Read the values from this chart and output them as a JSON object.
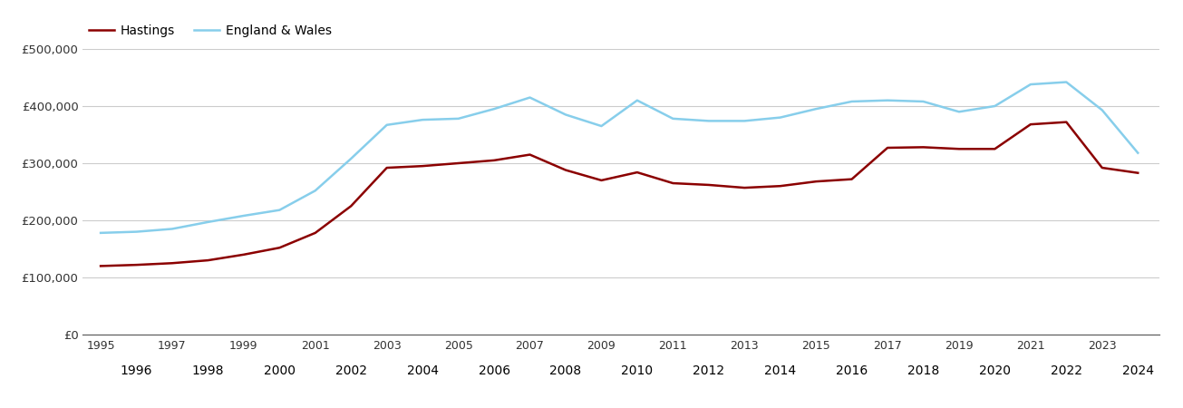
{
  "hastings_years": [
    1995,
    1996,
    1997,
    1998,
    1999,
    2000,
    2001,
    2002,
    2003,
    2004,
    2005,
    2006,
    2007,
    2008,
    2009,
    2010,
    2011,
    2012,
    2013,
    2014,
    2015,
    2016,
    2017,
    2018,
    2019,
    2020,
    2021,
    2022,
    2023,
    2024
  ],
  "hastings_values": [
    120000,
    122000,
    125000,
    130000,
    140000,
    152000,
    178000,
    225000,
    292000,
    295000,
    300000,
    305000,
    315000,
    288000,
    270000,
    284000,
    265000,
    262000,
    257000,
    260000,
    268000,
    272000,
    327000,
    328000,
    325000,
    325000,
    368000,
    372000,
    292000,
    283000
  ],
  "ew_years": [
    1995,
    1996,
    1997,
    1998,
    1999,
    2000,
    2001,
    2002,
    2003,
    2004,
    2005,
    2006,
    2007,
    2008,
    2009,
    2010,
    2011,
    2012,
    2013,
    2014,
    2015,
    2016,
    2017,
    2018,
    2019,
    2020,
    2021,
    2022,
    2023,
    2024
  ],
  "ew_values": [
    178000,
    180000,
    185000,
    197000,
    208000,
    218000,
    252000,
    308000,
    367000,
    376000,
    378000,
    395000,
    415000,
    385000,
    365000,
    410000,
    378000,
    374000,
    374000,
    380000,
    395000,
    408000,
    410000,
    408000,
    390000,
    400000,
    438000,
    442000,
    393000,
    318000
  ],
  "hastings_color": "#8B0000",
  "ew_color": "#87CEEB",
  "legend_labels": [
    "Hastings",
    "England & Wales"
  ],
  "ylim": [
    0,
    500000
  ],
  "yticks": [
    0,
    100000,
    200000,
    300000,
    400000,
    500000
  ],
  "ytick_labels": [
    "£0",
    "£100,000",
    "£200,000",
    "£300,000",
    "£400,000",
    "£500,000"
  ],
  "background_color": "#ffffff",
  "grid_color": "#cccccc",
  "xlim_left": 1994.5,
  "xlim_right": 2024.6
}
